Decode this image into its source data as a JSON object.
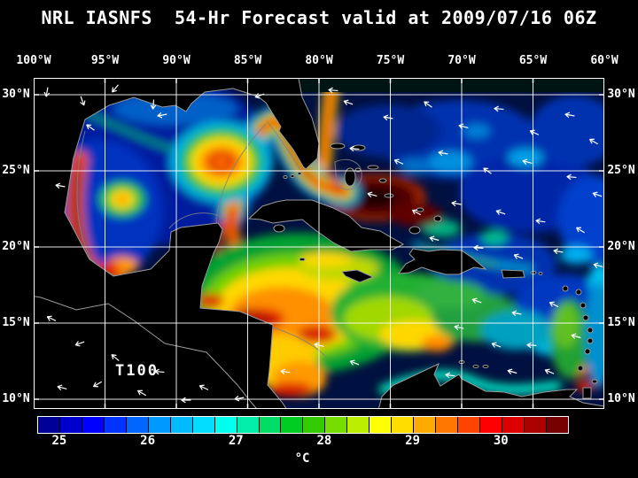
{
  "title": "NRL IASNFS  54-Hr Forecast valid at 2009/07/16 06Z",
  "axes": {
    "lon_labels": [
      "100°W",
      "95°W",
      "90°W",
      "85°W",
      "80°W",
      "75°W",
      "70°W",
      "65°W",
      "60°W"
    ],
    "lat_labels": [
      "30°N",
      "25°N",
      "20°N",
      "15°N",
      "10°N"
    ]
  },
  "map": {
    "annotation": "T100"
  },
  "colorbar": {
    "unit": "°C",
    "tick_labels": [
      "25",
      "26",
      "27",
      "28",
      "29",
      "30"
    ],
    "segment_colors": [
      "#000099",
      "#0000cc",
      "#0000ff",
      "#0033ff",
      "#0066ff",
      "#0099ff",
      "#00bbff",
      "#00ddff",
      "#00ffee",
      "#00eeaa",
      "#00dd66",
      "#00cc22",
      "#33cc00",
      "#77dd00",
      "#bbee00",
      "#ffff00",
      "#ffdd00",
      "#ffaa00",
      "#ff7700",
      "#ff4400",
      "#ff0000",
      "#dd0000",
      "#aa0000",
      "#770000"
    ]
  },
  "chart_data": {
    "type": "heatmap",
    "title": "NRL IASNFS 54-Hr Forecast valid at 2009/07/16 06Z",
    "field_annotation": "T100",
    "x_ticks": [
      "100°W",
      "95°W",
      "90°W",
      "85°W",
      "80°W",
      "75°W",
      "70°W",
      "65°W",
      "60°W"
    ],
    "y_ticks": [
      "30°N",
      "25°N",
      "20°N",
      "15°N",
      "10°N"
    ],
    "colorbar_unit": "°C",
    "colorbar_ticks": [
      25,
      26,
      27,
      28,
      29,
      30
    ]
  }
}
